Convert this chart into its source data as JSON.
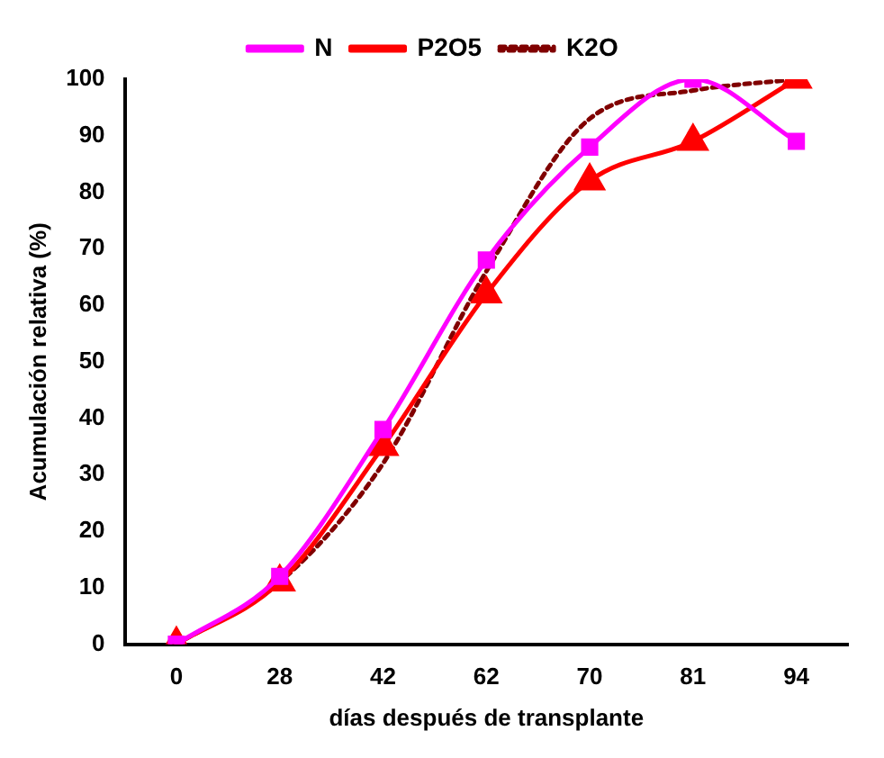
{
  "chart_data": {
    "type": "line",
    "xlabel": "días después de transplante",
    "ylabel": "Acumulación relativa (%)",
    "categories": [
      "0",
      "28",
      "42",
      "62",
      "70",
      "81",
      "94"
    ],
    "series": [
      {
        "name": "N",
        "color": "#ff00ff",
        "marker": "square",
        "line_style": "solid",
        "values": [
          0,
          12,
          38,
          68,
          88,
          100,
          89
        ]
      },
      {
        "name": "P2O5",
        "color": "#ff0000",
        "marker": "triangle",
        "line_style": "solid",
        "values": [
          0,
          11,
          35,
          62,
          82,
          89,
          100
        ]
      },
      {
        "name": "K2O",
        "color": "#800000",
        "marker": "none",
        "line_style": "dotted",
        "values": [
          0,
          11,
          32,
          66,
          93,
          98,
          100
        ]
      }
    ],
    "ylim": [
      0,
      100
    ],
    "yticks": [
      0,
      10,
      20,
      30,
      40,
      50,
      60,
      70,
      80,
      90,
      100
    ],
    "grid": false,
    "legend": "top"
  }
}
